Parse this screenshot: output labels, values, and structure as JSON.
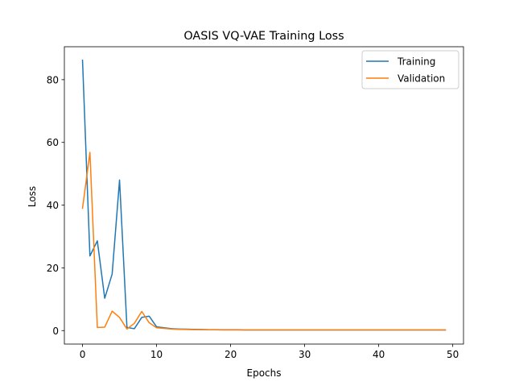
{
  "chart_data": {
    "type": "line",
    "title": "OASIS VQ-VAE Training Loss",
    "xlabel": "Epochs",
    "ylabel": "Loss",
    "xlim": [
      -2.45,
      51.45
    ],
    "ylim": [
      -4.3,
      90.5
    ],
    "x_ticks": [
      0,
      10,
      20,
      30,
      40,
      50
    ],
    "y_ticks": [
      0,
      20,
      40,
      60,
      80
    ],
    "grid": false,
    "legend_position": "upper right",
    "x": [
      0,
      1,
      2,
      3,
      4,
      5,
      6,
      7,
      8,
      9,
      10,
      11,
      12,
      13,
      14,
      15,
      16,
      17,
      18,
      19,
      20,
      21,
      22,
      23,
      24,
      25,
      26,
      27,
      28,
      29,
      30,
      31,
      32,
      33,
      34,
      35,
      36,
      37,
      38,
      39,
      40,
      41,
      42,
      43,
      44,
      45,
      46,
      47,
      48,
      49
    ],
    "series": [
      {
        "name": "Training",
        "color": "#1f77b4",
        "values": [
          86.2,
          23.8,
          28.6,
          10.3,
          18.0,
          48.0,
          1.0,
          0.6,
          4.2,
          4.6,
          1.2,
          0.9,
          0.6,
          0.5,
          0.45,
          0.4,
          0.35,
          0.3,
          0.3,
          0.25,
          0.25,
          0.25,
          0.2,
          0.2,
          0.2,
          0.2,
          0.2,
          0.2,
          0.2,
          0.2,
          0.2,
          0.2,
          0.2,
          0.2,
          0.2,
          0.2,
          0.2,
          0.2,
          0.2,
          0.2,
          0.2,
          0.2,
          0.2,
          0.2,
          0.2,
          0.2,
          0.2,
          0.2,
          0.2,
          0.2
        ]
      },
      {
        "name": "Validation",
        "color": "#ff7f0e",
        "values": [
          39.0,
          56.8,
          1.0,
          1.1,
          6.2,
          4.2,
          0.5,
          2.3,
          6.1,
          2.5,
          0.9,
          0.7,
          0.5,
          0.4,
          0.35,
          0.3,
          0.3,
          0.25,
          0.25,
          0.2,
          0.2,
          0.2,
          0.2,
          0.2,
          0.2,
          0.2,
          0.2,
          0.2,
          0.2,
          0.2,
          0.2,
          0.2,
          0.2,
          0.2,
          0.2,
          0.2,
          0.2,
          0.2,
          0.2,
          0.2,
          0.2,
          0.2,
          0.2,
          0.2,
          0.2,
          0.2,
          0.2,
          0.2,
          0.2,
          0.2
        ]
      }
    ]
  }
}
